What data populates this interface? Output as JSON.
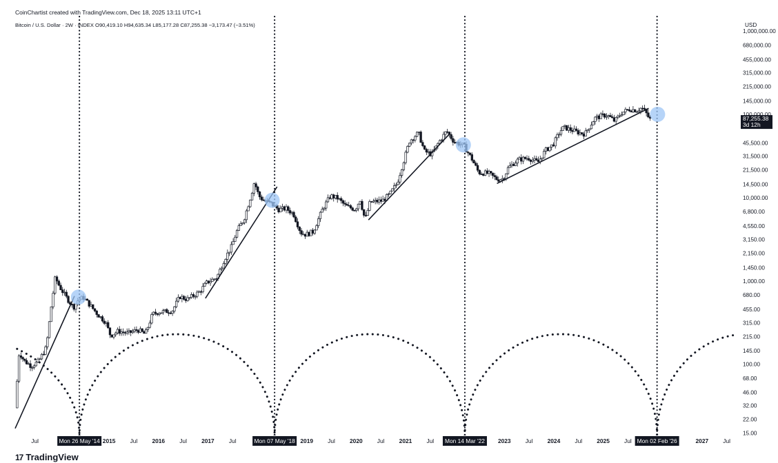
{
  "header": {
    "watermark": "CoinChartist created with TradingView.com, Dec 18, 2025 13:11 UTC+1",
    "symbol_line": "Bitcoin / U.S. Dollar · 2W · INDEX  O90,419.10  H94,635.34  L85,177.28  C87,255.38  −3,173.47 (−3.51%)"
  },
  "brand": {
    "name": "TradingView",
    "mark": "17"
  },
  "colors": {
    "candle": "#131722",
    "highlight": "#9ec5f5",
    "tag_bg": "#131722"
  },
  "chart_data": {
    "type": "line",
    "title": "Bitcoin / U.S. Dollar · 2W · INDEX",
    "ylabel": "USD",
    "yscale": "log",
    "ylim": [
      14,
      1100000
    ],
    "xlim": [
      2013.1,
      2027.7
    ],
    "y_ticks": [
      {
        "v": 1000000,
        "label": "1,000,000.00"
      },
      {
        "v": 680000,
        "label": "680,000.00"
      },
      {
        "v": 455000,
        "label": "455,000.00"
      },
      {
        "v": 315000,
        "label": "315,000.00"
      },
      {
        "v": 215000,
        "label": "215,000.00"
      },
      {
        "v": 145000,
        "label": "145,000.00"
      },
      {
        "v": 100000,
        "label": "100,000.00"
      },
      {
        "v": 45500,
        "label": "45,500.00"
      },
      {
        "v": 31500,
        "label": "31,500.00"
      },
      {
        "v": 21500,
        "label": "21,500.00"
      },
      {
        "v": 14500,
        "label": "14,500.00"
      },
      {
        "v": 10000,
        "label": "10,000.00"
      },
      {
        "v": 6800,
        "label": "6,800.00"
      },
      {
        "v": 4550,
        "label": "4,550.00"
      },
      {
        "v": 3150,
        "label": "3,150.00"
      },
      {
        "v": 2150,
        "label": "2,150.00"
      },
      {
        "v": 1450,
        "label": "1,450.00"
      },
      {
        "v": 1000,
        "label": "1,000.00"
      },
      {
        "v": 680,
        "label": "680.00"
      },
      {
        "v": 455,
        "label": "455.00"
      },
      {
        "v": 315,
        "label": "315.00"
      },
      {
        "v": 215,
        "label": "215.00"
      },
      {
        "v": 145,
        "label": "145.00"
      },
      {
        "v": 100,
        "label": "100.00"
      },
      {
        "v": 68,
        "label": "68.00"
      },
      {
        "v": 46,
        "label": "46.00"
      },
      {
        "v": 32,
        "label": "32.00"
      },
      {
        "v": 22,
        "label": "22.00"
      },
      {
        "v": 15,
        "label": "15.00"
      }
    ],
    "x_ticks": [
      {
        "t": 2013.5,
        "label": "Jul",
        "year": false
      },
      {
        "t": 2015.0,
        "label": "2015",
        "year": true
      },
      {
        "t": 2015.5,
        "label": "Jul",
        "year": false
      },
      {
        "t": 2016.0,
        "label": "2016",
        "year": true
      },
      {
        "t": 2016.5,
        "label": "Jul",
        "year": false
      },
      {
        "t": 2017.0,
        "label": "2017",
        "year": true
      },
      {
        "t": 2017.5,
        "label": "Jul",
        "year": false
      },
      {
        "t": 2019.0,
        "label": "2019",
        "year": true
      },
      {
        "t": 2019.5,
        "label": "Jul",
        "year": false
      },
      {
        "t": 2020.0,
        "label": "2020",
        "year": true
      },
      {
        "t": 2020.5,
        "label": "Jul",
        "year": false
      },
      {
        "t": 2021.0,
        "label": "2021",
        "year": true
      },
      {
        "t": 2021.5,
        "label": "Jul",
        "year": false
      },
      {
        "t": 2023.0,
        "label": "2023",
        "year": true
      },
      {
        "t": 2023.5,
        "label": "Jul",
        "year": false
      },
      {
        "t": 2024.0,
        "label": "2024",
        "year": true
      },
      {
        "t": 2024.5,
        "label": "Jul",
        "year": false
      },
      {
        "t": 2025.0,
        "label": "2025",
        "year": true
      },
      {
        "t": 2025.5,
        "label": "Jul",
        "year": false
      },
      {
        "t": 2027.0,
        "label": "2027",
        "year": true
      },
      {
        "t": 2027.5,
        "label": "Jul",
        "year": false
      }
    ],
    "cycle_markers": [
      {
        "t": 2014.4,
        "label": "Mon 26 May '14"
      },
      {
        "t": 2018.35,
        "label": "Mon 07 May '18"
      },
      {
        "t": 2022.2,
        "label": "Mon 14 Mar '22"
      },
      {
        "t": 2026.09,
        "label": "Mon 02 Feb '26"
      }
    ],
    "price_path": [
      {
        "t": 2013.12,
        "p": 30
      },
      {
        "t": 2013.2,
        "p": 140
      },
      {
        "t": 2013.3,
        "p": 110
      },
      {
        "t": 2013.45,
        "p": 95
      },
      {
        "t": 2013.6,
        "p": 110
      },
      {
        "t": 2013.75,
        "p": 160
      },
      {
        "t": 2013.85,
        "p": 500
      },
      {
        "t": 2013.93,
        "p": 1100
      },
      {
        "t": 2014.02,
        "p": 850
      },
      {
        "t": 2014.15,
        "p": 640
      },
      {
        "t": 2014.3,
        "p": 480
      },
      {
        "t": 2014.4,
        "p": 600
      },
      {
        "t": 2014.5,
        "p": 630
      },
      {
        "t": 2014.65,
        "p": 500
      },
      {
        "t": 2014.8,
        "p": 390
      },
      {
        "t": 2014.95,
        "p": 320
      },
      {
        "t": 2015.05,
        "p": 220
      },
      {
        "t": 2015.2,
        "p": 250
      },
      {
        "t": 2015.4,
        "p": 235
      },
      {
        "t": 2015.6,
        "p": 260
      },
      {
        "t": 2015.75,
        "p": 230
      },
      {
        "t": 2015.9,
        "p": 400
      },
      {
        "t": 2016.0,
        "p": 420
      },
      {
        "t": 2016.3,
        "p": 440
      },
      {
        "t": 2016.45,
        "p": 650
      },
      {
        "t": 2016.6,
        "p": 600
      },
      {
        "t": 2016.85,
        "p": 740
      },
      {
        "t": 2017.0,
        "p": 960
      },
      {
        "t": 2017.2,
        "p": 1100
      },
      {
        "t": 2017.35,
        "p": 1800
      },
      {
        "t": 2017.5,
        "p": 2600
      },
      {
        "t": 2017.6,
        "p": 3900
      },
      {
        "t": 2017.75,
        "p": 5500
      },
      {
        "t": 2017.9,
        "p": 11000
      },
      {
        "t": 2017.96,
        "p": 15500
      },
      {
        "t": 2018.05,
        "p": 10500
      },
      {
        "t": 2018.15,
        "p": 9200
      },
      {
        "t": 2018.3,
        "p": 8500
      },
      {
        "t": 2018.45,
        "p": 7200
      },
      {
        "t": 2018.6,
        "p": 7400
      },
      {
        "t": 2018.75,
        "p": 6400
      },
      {
        "t": 2018.9,
        "p": 3800
      },
      {
        "t": 2019.0,
        "p": 3600
      },
      {
        "t": 2019.15,
        "p": 3900
      },
      {
        "t": 2019.35,
        "p": 7500
      },
      {
        "t": 2019.5,
        "p": 10500
      },
      {
        "t": 2019.65,
        "p": 9800
      },
      {
        "t": 2019.8,
        "p": 8000
      },
      {
        "t": 2020.0,
        "p": 7200
      },
      {
        "t": 2020.1,
        "p": 9500
      },
      {
        "t": 2020.2,
        "p": 5400
      },
      {
        "t": 2020.3,
        "p": 8800
      },
      {
        "t": 2020.55,
        "p": 9200
      },
      {
        "t": 2020.7,
        "p": 11000
      },
      {
        "t": 2020.85,
        "p": 15000
      },
      {
        "t": 2021.0,
        "p": 30000
      },
      {
        "t": 2021.1,
        "p": 48000
      },
      {
        "t": 2021.28,
        "p": 60000
      },
      {
        "t": 2021.4,
        "p": 36000
      },
      {
        "t": 2021.55,
        "p": 33000
      },
      {
        "t": 2021.7,
        "p": 47000
      },
      {
        "t": 2021.85,
        "p": 63000
      },
      {
        "t": 2022.0,
        "p": 47000
      },
      {
        "t": 2022.2,
        "p": 42000
      },
      {
        "t": 2022.35,
        "p": 30000
      },
      {
        "t": 2022.5,
        "p": 20000
      },
      {
        "t": 2022.7,
        "p": 19500
      },
      {
        "t": 2022.88,
        "p": 16500
      },
      {
        "t": 2023.0,
        "p": 17000
      },
      {
        "t": 2023.1,
        "p": 23000
      },
      {
        "t": 2023.3,
        "p": 28500
      },
      {
        "t": 2023.5,
        "p": 30000
      },
      {
        "t": 2023.7,
        "p": 26500
      },
      {
        "t": 2023.85,
        "p": 37000
      },
      {
        "t": 2024.0,
        "p": 43000
      },
      {
        "t": 2024.15,
        "p": 63000
      },
      {
        "t": 2024.22,
        "p": 70000
      },
      {
        "t": 2024.5,
        "p": 61000
      },
      {
        "t": 2024.65,
        "p": 58000
      },
      {
        "t": 2024.85,
        "p": 90000
      },
      {
        "t": 2025.0,
        "p": 96000
      },
      {
        "t": 2025.1,
        "p": 98000
      },
      {
        "t": 2025.25,
        "p": 83000
      },
      {
        "t": 2025.4,
        "p": 105000
      },
      {
        "t": 2025.55,
        "p": 115000
      },
      {
        "t": 2025.7,
        "p": 112000
      },
      {
        "t": 2025.8,
        "p": 120000
      },
      {
        "t": 2025.88,
        "p": 105000
      },
      {
        "t": 2025.96,
        "p": 87255
      }
    ],
    "trendlines": [
      [
        {
          "t": 2013.1,
          "p": 17
        },
        {
          "t": 2014.3,
          "p": 660
        }
      ],
      [
        {
          "t": 2016.95,
          "p": 620
        },
        {
          "t": 2018.4,
          "p": 13500
        }
      ],
      [
        {
          "t": 2020.25,
          "p": 5400
        },
        {
          "t": 2021.9,
          "p": 59000
        }
      ],
      [
        {
          "t": 2022.85,
          "p": 14800
        },
        {
          "t": 2025.92,
          "p": 118000
        }
      ]
    ],
    "highlight_circles": [
      {
        "t": 2014.38,
        "p": 640
      },
      {
        "t": 2018.3,
        "p": 9300
      },
      {
        "t": 2022.17,
        "p": 43000
      },
      {
        "t": 2026.1,
        "p": 100000
      }
    ],
    "current_price": {
      "value": 87255.38,
      "label": "87,255.38",
      "countdown": "3d 12h"
    }
  }
}
